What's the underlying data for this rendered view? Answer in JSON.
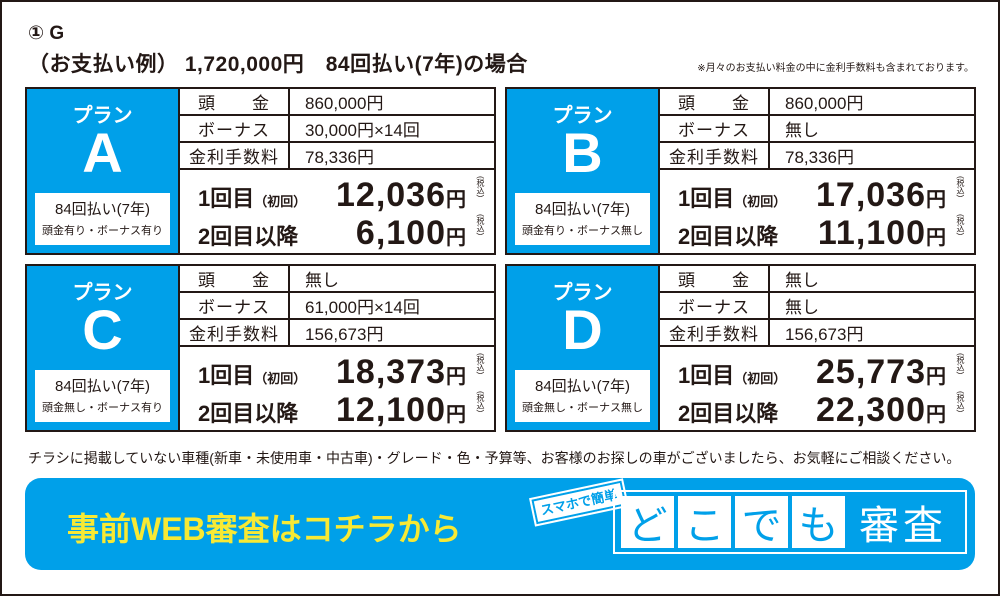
{
  "header": {
    "title": "① G",
    "example": "（お支払い例） 1,720,000円　84回払い(7年)の場合",
    "note": "※月々のお支払い料金の中に金利手数料も含まれております。"
  },
  "labels": {
    "plan": "プラン",
    "down": "頭　　金",
    "bonus": "ボーナス",
    "fee": "金利手数料",
    "first": "1回目",
    "first_sub": "（初回）",
    "later": "2回目以降",
    "yen": "円",
    "tax": "(税込)"
  },
  "plans": [
    {
      "letter": "A",
      "term": "84回払い(7年)",
      "cond": "頭金有り・ボーナス有り",
      "down": "860,000円",
      "bonus": "30,000円×14回",
      "fee": "78,336円",
      "first": "12,036",
      "later": "6,100"
    },
    {
      "letter": "B",
      "term": "84回払い(7年)",
      "cond": "頭金有り・ボーナス無し",
      "down": "860,000円",
      "bonus": "無し",
      "fee": "78,336円",
      "first": "17,036",
      "later": "11,100"
    },
    {
      "letter": "C",
      "term": "84回払い(7年)",
      "cond": "頭金無し・ボーナス有り",
      "down": "無し",
      "bonus": "61,000円×14回",
      "fee": "156,673円",
      "first": "18,373",
      "later": "12,100"
    },
    {
      "letter": "D",
      "term": "84回払い(7年)",
      "cond": "頭金無し・ボーナス無し",
      "down": "無し",
      "bonus": "無し",
      "fee": "156,673円",
      "first": "25,773",
      "later": "22,300"
    }
  ],
  "footer": "チラシに掲載していない車種(新車・未使用車・中古車)・グレード・色・予算等、お客様のお探しの車がございましたら、お気軽にご相談ください。",
  "banner": {
    "text": "事前WEB審査はコチラから",
    "badge": "スマホで簡単",
    "chars": [
      "ど",
      "こ",
      "で",
      "も"
    ],
    "suffix": "審査"
  },
  "colors": {
    "accent": "#00a0e9",
    "banner_text": "#f7e934",
    "ink": "#231815"
  }
}
